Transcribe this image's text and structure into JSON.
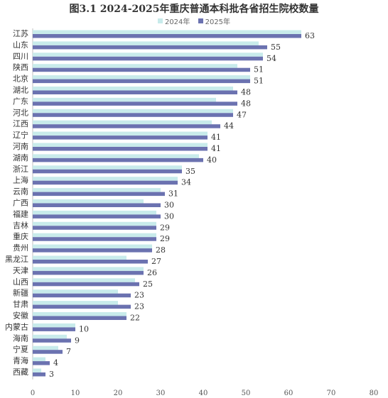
{
  "chart_data": {
    "type": "bar",
    "orientation": "horizontal",
    "title": "图3.1  2024-2025年重庆普通本科批各省招生院校数量",
    "categories": [
      "江苏",
      "山东",
      "四川",
      "陕西",
      "北京",
      "湖北",
      "广东",
      "河北",
      "江西",
      "辽宁",
      "河南",
      "湖南",
      "浙江",
      "上海",
      "云南",
      "广西",
      "福建",
      "吉林",
      "重庆",
      "贵州",
      "黑龙江",
      "天津",
      "山西",
      "新疆",
      "甘肃",
      "安徽",
      "内蒙古",
      "海南",
      "宁夏",
      "青海",
      "西藏"
    ],
    "series": [
      {
        "name": "2024年",
        "color": "#c8ebeb",
        "values": [
          63,
          53,
          54,
          48,
          51,
          47,
          43,
          47,
          42,
          41,
          41,
          39,
          35,
          34,
          30,
          26,
          29,
          29,
          29,
          28,
          22,
          26,
          24,
          20,
          20,
          22,
          10,
          8,
          6,
          3,
          2
        ]
      },
      {
        "name": "2025年",
        "color": "#6b72b0",
        "values": [
          63,
          55,
          54,
          51,
          51,
          48,
          48,
          47,
          44,
          41,
          41,
          40,
          35,
          34,
          31,
          30,
          30,
          29,
          29,
          28,
          27,
          26,
          25,
          23,
          23,
          22,
          10,
          9,
          7,
          4,
          3
        ]
      }
    ],
    "data_labels": [
      "63",
      "55",
      "54",
      "51",
      "51",
      "48",
      "48",
      "47",
      "44",
      "41",
      "41",
      "40",
      "35",
      "34",
      "31",
      "30",
      "30",
      "29",
      "29",
      "28",
      "27",
      "26",
      "25",
      "23",
      "23",
      "22",
      "10",
      "9",
      "7",
      "4",
      "3"
    ],
    "xlim": [
      0,
      80
    ],
    "xticks": [
      "0",
      "10",
      "20",
      "30",
      "40",
      "50",
      "60",
      "70",
      "80"
    ],
    "grid": false,
    "legend_position": "top-center"
  }
}
